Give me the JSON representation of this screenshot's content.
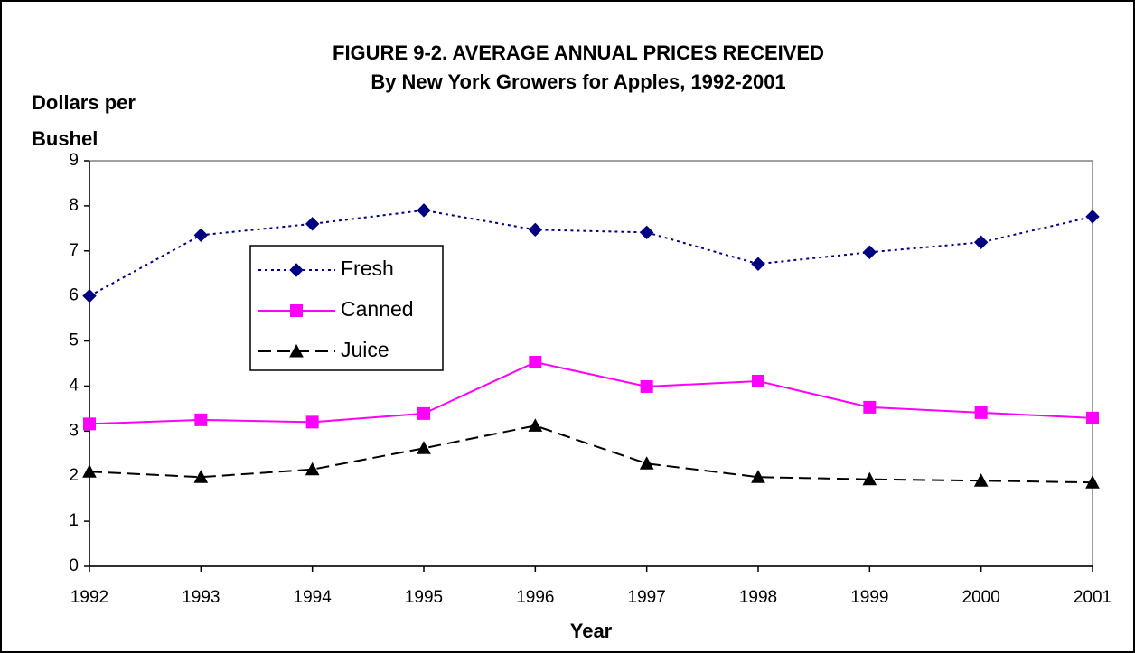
{
  "chart_data": {
    "type": "line",
    "title": [
      "FIGURE 9-2. AVERAGE ANNUAL PRICES RECEIVED",
      "By New York Growers for Apples, 1992-2001"
    ],
    "ylabel": [
      "Dollars per",
      "Bushel"
    ],
    "xlabel": "Year",
    "categories": [
      "1992",
      "1993",
      "1994",
      "1995",
      "1996",
      "1997",
      "1998",
      "1999",
      "2000",
      "2001"
    ],
    "series": [
      {
        "name": "Fresh",
        "color": "#000080",
        "marker": "diamond",
        "dash": "dotted",
        "values": [
          6.0,
          7.35,
          7.6,
          7.9,
          7.47,
          7.41,
          6.71,
          6.97,
          7.19,
          7.76
        ]
      },
      {
        "name": "Canned",
        "color": "#ff00ff",
        "marker": "square",
        "dash": "solid",
        "values": [
          3.16,
          3.25,
          3.2,
          3.39,
          4.53,
          3.99,
          4.11,
          3.53,
          3.41,
          3.29
        ]
      },
      {
        "name": "Juice",
        "color": "#000000",
        "marker": "triangle",
        "dash": "dashed",
        "values": [
          2.1,
          1.98,
          2.15,
          2.62,
          3.12,
          2.28,
          1.98,
          1.93,
          1.9,
          1.86
        ]
      }
    ],
    "ylim": [
      0,
      9
    ],
    "yticks": [
      0,
      1,
      2,
      3,
      4,
      5,
      6,
      7,
      8,
      9
    ],
    "grid": false,
    "legend": "inside-left"
  }
}
